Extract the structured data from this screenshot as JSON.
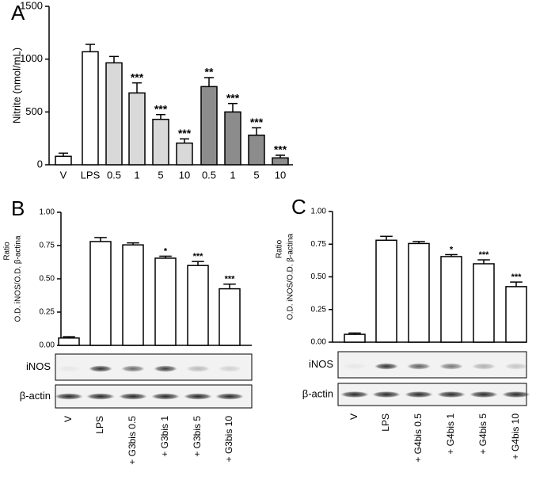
{
  "chart_data": [
    {
      "type": "bar",
      "panel_label": "A",
      "y_label": [
        "Nitrite (nmol/mL)"
      ],
      "categories": [
        "V",
        "LPS",
        "0.5",
        "1",
        "5",
        "10",
        "0.5",
        "1",
        "5",
        "10"
      ],
      "values": [
        80,
        1070,
        965,
        680,
        430,
        205,
        740,
        500,
        280,
        65
      ],
      "errors": [
        30,
        70,
        60,
        95,
        45,
        40,
        85,
        80,
        70,
        25
      ],
      "significance": [
        null,
        null,
        null,
        "***",
        "***",
        "***",
        "**",
        "***",
        "***",
        "***"
      ],
      "colors": [
        "#ffffff",
        "#ffffff",
        "#d9d9d9",
        "#d9d9d9",
        "#d9d9d9",
        "#d9d9d9",
        "#8c8c8c",
        "#8c8c8c",
        "#8c8c8c",
        "#8c8c8c"
      ],
      "ylim": [
        0,
        1500
      ],
      "yticks": [
        0,
        500,
        1000,
        1500
      ]
    },
    {
      "type": "bar",
      "panel_label": "B",
      "y_label": [
        "Ratio",
        "O.D. iNOS/O.D. β-actina"
      ],
      "categories": [
        "V",
        "LPS",
        "+ G3bis 0.5",
        "+ G3bis 1",
        "+ G3bis 5",
        "+ G3bis 10"
      ],
      "values": [
        0.055,
        0.78,
        0.755,
        0.655,
        0.6,
        0.425
      ],
      "errors": [
        0.01,
        0.03,
        0.015,
        0.015,
        0.03,
        0.035
      ],
      "significance": [
        null,
        null,
        null,
        "*",
        "***",
        "***"
      ],
      "colors": [
        "#ffffff",
        "#ffffff",
        "#ffffff",
        "#ffffff",
        "#ffffff",
        "#ffffff"
      ],
      "ylim": [
        0,
        1
      ],
      "yticks": [
        {
          "value": 0,
          "label": "0.00"
        },
        {
          "value": 0.25,
          "label": "0.25"
        },
        {
          "value": 0.5,
          "label": "0.50"
        },
        {
          "value": 0.75,
          "label": "0.75"
        },
        {
          "value": 1,
          "label": "1.00"
        }
      ],
      "blot_labels": [
        "iNOS",
        "β-actin"
      ]
    },
    {
      "type": "bar",
      "panel_label": "C",
      "y_label": [
        "Ratio",
        "O.D. iNOS/O.D. β-actina"
      ],
      "categories": [
        "V",
        "LPS",
        "+ G4bis 0.5",
        "+ G4bis 1",
        "+ G4bis 5",
        "+ G4bis 10"
      ],
      "values": [
        0.06,
        0.78,
        0.755,
        0.655,
        0.6,
        0.425
      ],
      "errors": [
        0.01,
        0.03,
        0.015,
        0.015,
        0.03,
        0.035
      ],
      "significance": [
        null,
        null,
        null,
        "*",
        "***",
        "***"
      ],
      "colors": [
        "#ffffff",
        "#ffffff",
        "#ffffff",
        "#ffffff",
        "#ffffff",
        "#ffffff"
      ],
      "ylim": [
        0,
        1
      ],
      "yticks": [
        {
          "value": 0,
          "label": "0.00"
        },
        {
          "value": 0.25,
          "label": "0.25"
        },
        {
          "value": 0.5,
          "label": "0.50"
        },
        {
          "value": 0.75,
          "label": "0.75"
        },
        {
          "value": 1,
          "label": "1.00"
        }
      ],
      "blot_labels": [
        "iNOS",
        "β-actin"
      ]
    }
  ]
}
